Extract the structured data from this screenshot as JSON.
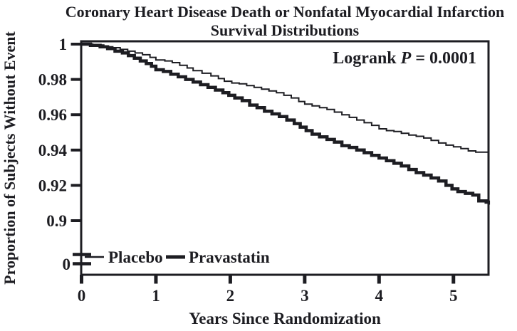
{
  "page": {
    "background": "#ffffff",
    "ink": "#1d1d22"
  },
  "chart_data": {
    "type": "line",
    "step": true,
    "grid": false,
    "title_line1": "Coronary Heart Disease Death or Nonfatal Myocardial Infarction",
    "title_line2": "Survival Distributions",
    "xlabel": "Years Since Randomization",
    "ylabel": "Proportion of Subjects Without Event",
    "xlim": [
      0,
      5.47
    ],
    "ylim_main": [
      0.9,
      1.0
    ],
    "axis_break_to_zero": true,
    "x_ticks": [
      "0",
      "1",
      "2",
      "3",
      "4",
      "5"
    ],
    "y_ticks": [
      {
        "v": 1.0,
        "label": "1"
      },
      {
        "v": 0.98,
        "label": "0.98"
      },
      {
        "v": 0.96,
        "label": "0.96"
      },
      {
        "v": 0.94,
        "label": "0.94"
      },
      {
        "v": 0.92,
        "label": "0.92"
      },
      {
        "v": 0.9,
        "label": "0.9"
      }
    ],
    "y_zero_label": "0",
    "annotation": {
      "prefix": "Logrank ",
      "p": "P",
      "suffix": " = 0.0001"
    },
    "legend": [
      {
        "name": "Placebo",
        "weight": "thin"
      },
      {
        "name": "Pravastatin",
        "weight": "thick"
      }
    ],
    "series": [
      {
        "name": "Placebo",
        "stroke_width": 2,
        "points": [
          [
            0,
            1.0
          ],
          [
            0.15,
            0.9995
          ],
          [
            0.3,
            0.9985
          ],
          [
            0.42,
            0.998
          ],
          [
            0.52,
            0.997
          ],
          [
            0.62,
            0.996
          ],
          [
            0.72,
            0.995
          ],
          [
            0.82,
            0.994
          ],
          [
            0.92,
            0.9925
          ],
          [
            1.0,
            0.991
          ],
          [
            1.12,
            0.9905
          ],
          [
            1.22,
            0.9895
          ],
          [
            1.32,
            0.988
          ],
          [
            1.42,
            0.9865
          ],
          [
            1.5,
            0.985
          ],
          [
            1.62,
            0.9835
          ],
          [
            1.74,
            0.982
          ],
          [
            1.84,
            0.9805
          ],
          [
            1.92,
            0.979
          ],
          [
            2.02,
            0.978
          ],
          [
            2.12,
            0.9775
          ],
          [
            2.22,
            0.9765
          ],
          [
            2.32,
            0.9755
          ],
          [
            2.42,
            0.9745
          ],
          [
            2.52,
            0.9735
          ],
          [
            2.62,
            0.9725
          ],
          [
            2.72,
            0.971
          ],
          [
            2.82,
            0.9695
          ],
          [
            2.92,
            0.9675
          ],
          [
            3.0,
            0.966
          ],
          [
            3.1,
            0.965
          ],
          [
            3.2,
            0.964
          ],
          [
            3.3,
            0.963
          ],
          [
            3.4,
            0.9615
          ],
          [
            3.5,
            0.96
          ],
          [
            3.6,
            0.9585
          ],
          [
            3.7,
            0.957
          ],
          [
            3.8,
            0.9555
          ],
          [
            3.9,
            0.954
          ],
          [
            4.0,
            0.952
          ],
          [
            4.1,
            0.951
          ],
          [
            4.2,
            0.9505
          ],
          [
            4.3,
            0.9495
          ],
          [
            4.4,
            0.9485
          ],
          [
            4.5,
            0.9478
          ],
          [
            4.6,
            0.9468
          ],
          [
            4.7,
            0.9455
          ],
          [
            4.8,
            0.944
          ],
          [
            4.9,
            0.9428
          ],
          [
            5.0,
            0.9418
          ],
          [
            5.1,
            0.9408
          ],
          [
            5.2,
            0.9395
          ],
          [
            5.3,
            0.9388
          ],
          [
            5.47,
            0.938
          ]
        ]
      },
      {
        "name": "Pravastatin",
        "stroke_width": 4.5,
        "points": [
          [
            0,
            1.0
          ],
          [
            0.12,
            0.9993
          ],
          [
            0.25,
            0.9985
          ],
          [
            0.35,
            0.9975
          ],
          [
            0.45,
            0.996
          ],
          [
            0.55,
            0.995
          ],
          [
            0.63,
            0.9935
          ],
          [
            0.71,
            0.992
          ],
          [
            0.79,
            0.9905
          ],
          [
            0.87,
            0.989
          ],
          [
            0.94,
            0.9875
          ],
          [
            1.0,
            0.9855
          ],
          [
            1.1,
            0.9845
          ],
          [
            1.2,
            0.983
          ],
          [
            1.3,
            0.9815
          ],
          [
            1.4,
            0.98
          ],
          [
            1.5,
            0.9785
          ],
          [
            1.6,
            0.977
          ],
          [
            1.7,
            0.9755
          ],
          [
            1.8,
            0.974
          ],
          [
            1.9,
            0.9725
          ],
          [
            1.98,
            0.971
          ],
          [
            2.06,
            0.9695
          ],
          [
            2.16,
            0.968
          ],
          [
            2.26,
            0.9655
          ],
          [
            2.36,
            0.964
          ],
          [
            2.46,
            0.962
          ],
          [
            2.56,
            0.9605
          ],
          [
            2.66,
            0.959
          ],
          [
            2.76,
            0.957
          ],
          [
            2.86,
            0.955
          ],
          [
            2.94,
            0.953
          ],
          [
            3.02,
            0.951
          ],
          [
            3.1,
            0.949
          ],
          [
            3.2,
            0.9475
          ],
          [
            3.3,
            0.946
          ],
          [
            3.4,
            0.9445
          ],
          [
            3.5,
            0.9425
          ],
          [
            3.6,
            0.9415
          ],
          [
            3.7,
            0.94
          ],
          [
            3.8,
            0.9385
          ],
          [
            3.9,
            0.937
          ],
          [
            4.0,
            0.9355
          ],
          [
            4.1,
            0.934
          ],
          [
            4.2,
            0.9325
          ],
          [
            4.3,
            0.931
          ],
          [
            4.4,
            0.929
          ],
          [
            4.5,
            0.9272
          ],
          [
            4.6,
            0.9258
          ],
          [
            4.7,
            0.9242
          ],
          [
            4.8,
            0.9225
          ],
          [
            4.9,
            0.92
          ],
          [
            4.98,
            0.918
          ],
          [
            5.06,
            0.9165
          ],
          [
            5.16,
            0.9155
          ],
          [
            5.26,
            0.9145
          ],
          [
            5.34,
            0.9112
          ],
          [
            5.44,
            0.9105
          ],
          [
            5.47,
            0.91
          ]
        ]
      }
    ]
  }
}
